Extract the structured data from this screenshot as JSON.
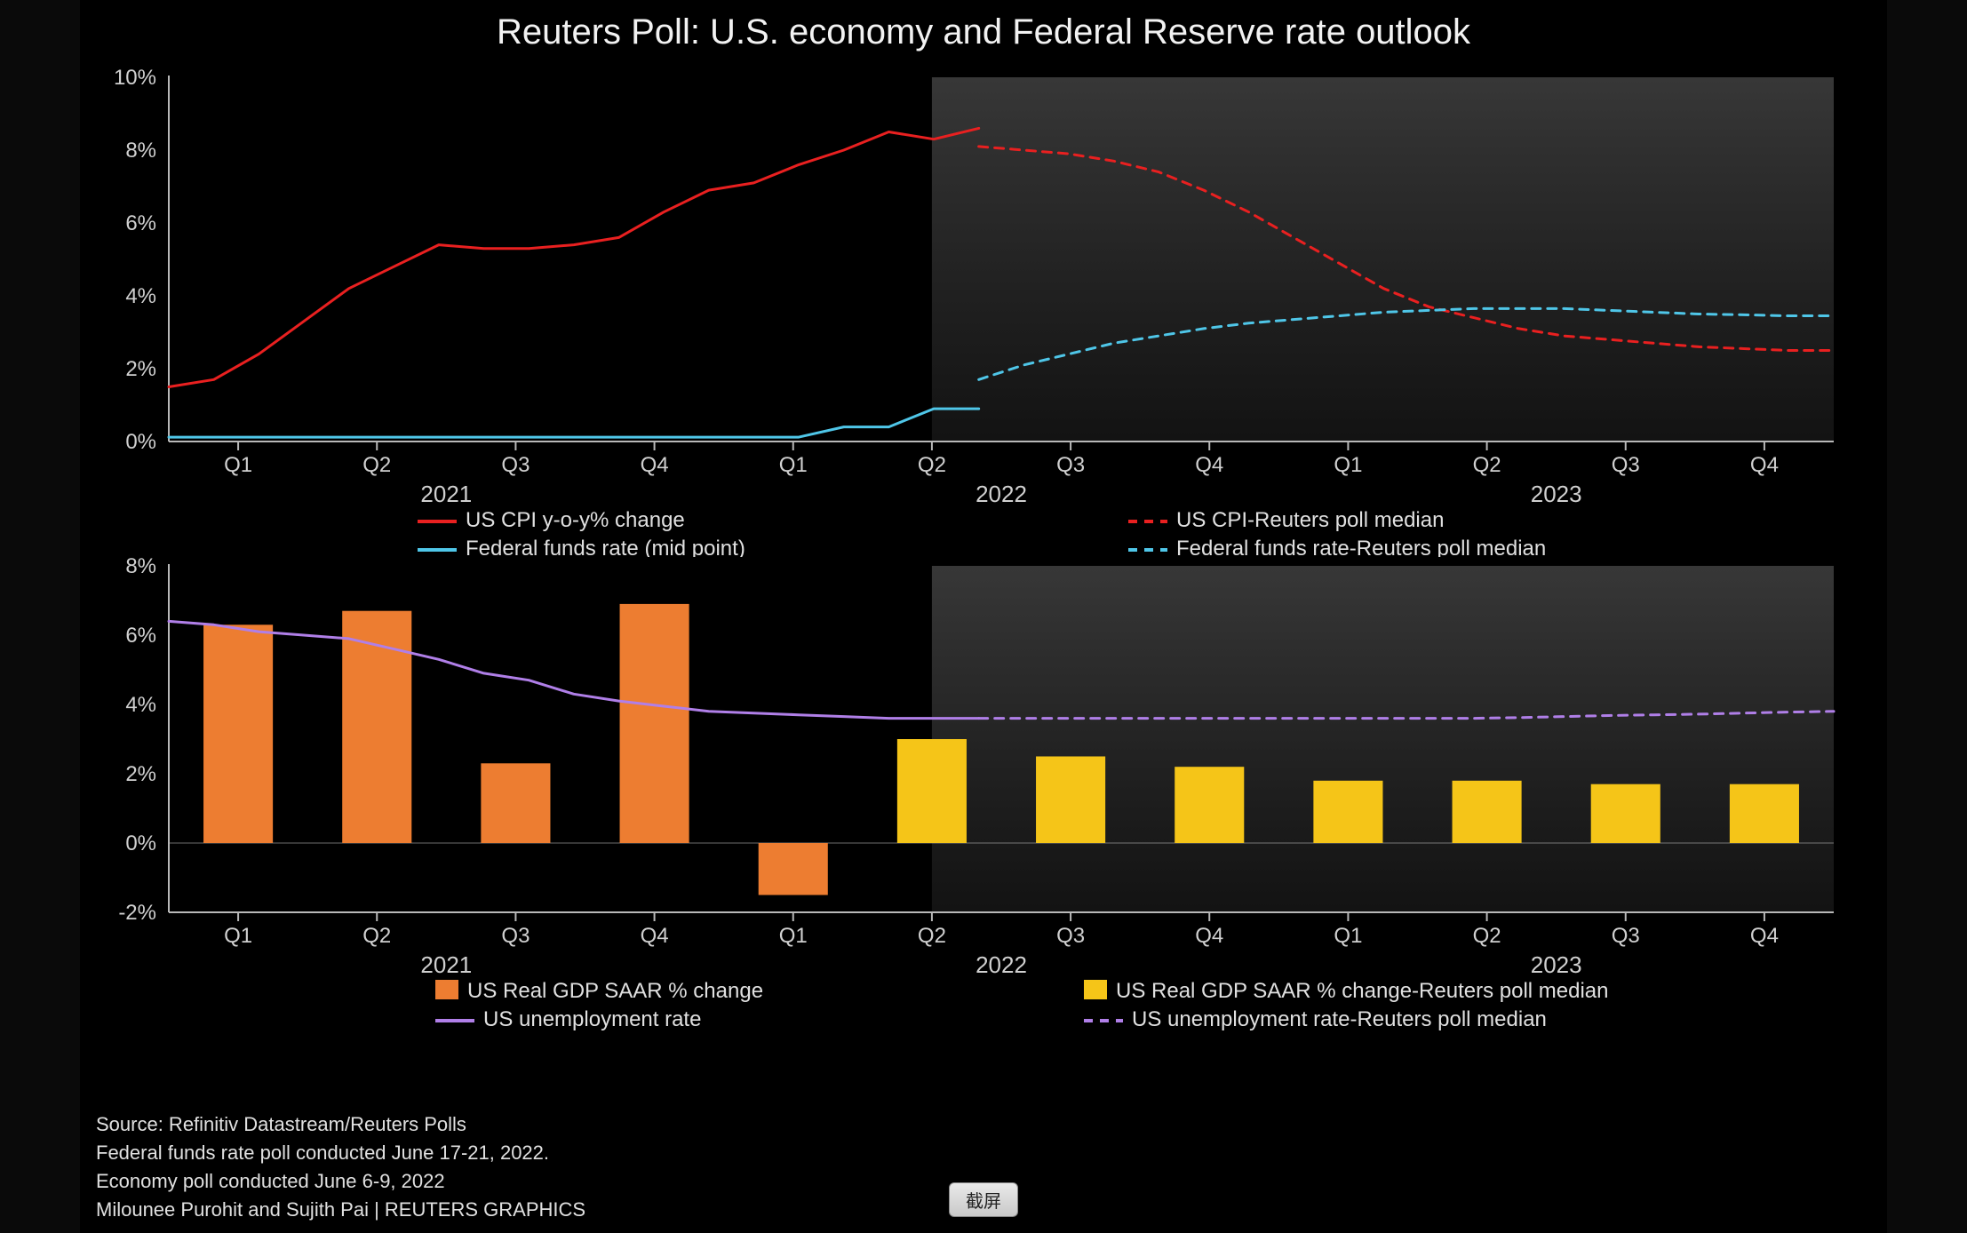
{
  "title": "Reuters Poll: U.S. economy and Federal Reserve rate outlook",
  "colors": {
    "bg_page": "#000000",
    "bg_outer": "#0a0a0a",
    "forecast_shade": "#3a3a3a",
    "axis_line": "#b8b8b8",
    "tick_text": "#d0d0d0",
    "cpi": "#e92020",
    "cpi_forecast": "#e92020",
    "ffr": "#4fc6e8",
    "ffr_forecast": "#4fc6e8",
    "gdp_actual": "#ed7d31",
    "gdp_forecast": "#f5c518",
    "unemp": "#b07fe8",
    "unemp_forecast": "#b07fe8"
  },
  "typography": {
    "title_fontsize": 40,
    "tick_fontsize": 24,
    "legend_fontsize": 24,
    "footer_fontsize": 22
  },
  "shared_x": {
    "quarters": [
      "Q1",
      "Q2",
      "Q3",
      "Q4",
      "Q1",
      "Q2",
      "Q3",
      "Q4",
      "Q1",
      "Q2",
      "Q3",
      "Q4"
    ],
    "years": [
      "2021",
      "2022",
      "2023"
    ],
    "year_positions": [
      2,
      6,
      10
    ],
    "forecast_start_index": 5.5
  },
  "top_chart": {
    "type": "line",
    "ylim": [
      0,
      10
    ],
    "ytick_step": 2,
    "ytick_suffix": "%",
    "line_width": 3,
    "series": [
      {
        "key": "cpi_actual",
        "color": "#e92020",
        "dash": false,
        "data": [
          1.5,
          1.7,
          2.4,
          3.3,
          4.2,
          4.8,
          5.4,
          5.3,
          5.3,
          5.4,
          5.6,
          6.3,
          6.9,
          7.1,
          7.6,
          8.0,
          8.5,
          8.3,
          8.6
        ],
        "x_points": 19
      },
      {
        "key": "cpi_forecast",
        "color": "#e92020",
        "dash": true,
        "data": [
          8.1,
          8.0,
          7.9,
          7.7,
          7.4,
          6.9,
          6.3,
          5.6,
          4.9,
          4.2,
          3.7,
          3.4,
          3.1,
          2.9,
          2.8,
          2.7,
          2.6,
          2.55,
          2.5,
          2.5
        ],
        "x_start": 18,
        "x_points": 20
      },
      {
        "key": "ffr_actual",
        "color": "#4fc6e8",
        "dash": false,
        "data": [
          0.12,
          0.12,
          0.12,
          0.12,
          0.12,
          0.12,
          0.12,
          0.12,
          0.12,
          0.12,
          0.12,
          0.12,
          0.12,
          0.12,
          0.12,
          0.4,
          0.4,
          0.9,
          0.9
        ],
        "x_points": 19
      },
      {
        "key": "ffr_forecast",
        "color": "#4fc6e8",
        "dash": true,
        "data": [
          1.7,
          2.1,
          2.4,
          2.7,
          2.9,
          3.1,
          3.25,
          3.35,
          3.45,
          3.55,
          3.6,
          3.65,
          3.65,
          3.65,
          3.6,
          3.55,
          3.5,
          3.48,
          3.45,
          3.45
        ],
        "x_start": 18,
        "x_points": 20
      }
    ],
    "legend": [
      {
        "swatch": "line",
        "color": "#e92020",
        "dash": false,
        "label": "US CPI y-o-y% change",
        "col": 0,
        "row": 0
      },
      {
        "swatch": "line",
        "color": "#4fc6e8",
        "dash": false,
        "label": "Federal funds rate (mid point)",
        "col": 0,
        "row": 1
      },
      {
        "swatch": "line",
        "color": "#e92020",
        "dash": true,
        "label": "US CPI-Reuters poll median",
        "col": 1,
        "row": 0
      },
      {
        "swatch": "line",
        "color": "#4fc6e8",
        "dash": true,
        "label": "Federal funds rate-Reuters poll median",
        "col": 1,
        "row": 1
      }
    ]
  },
  "bottom_chart": {
    "type": "bar+line",
    "ylim": [
      -2,
      8
    ],
    "ytick_step": 2,
    "ytick_suffix": "%",
    "bar_width": 0.5,
    "line_width": 3,
    "bars": [
      {
        "q": 0,
        "v": 6.3,
        "kind": "actual"
      },
      {
        "q": 1,
        "v": 6.7,
        "kind": "actual"
      },
      {
        "q": 2,
        "v": 2.3,
        "kind": "actual"
      },
      {
        "q": 3,
        "v": 6.9,
        "kind": "actual"
      },
      {
        "q": 4,
        "v": -1.5,
        "kind": "actual"
      },
      {
        "q": 5,
        "v": 3.0,
        "kind": "forecast"
      },
      {
        "q": 6,
        "v": 2.5,
        "kind": "forecast"
      },
      {
        "q": 7,
        "v": 2.2,
        "kind": "forecast"
      },
      {
        "q": 8,
        "v": 1.8,
        "kind": "forecast"
      },
      {
        "q": 9,
        "v": 1.8,
        "kind": "forecast"
      },
      {
        "q": 10,
        "v": 1.7,
        "kind": "forecast"
      },
      {
        "q": 11,
        "v": 1.7,
        "kind": "forecast"
      }
    ],
    "unemp_actual": {
      "color": "#b07fe8",
      "dash": false,
      "data": [
        6.4,
        6.3,
        6.1,
        6.0,
        5.9,
        5.6,
        5.3,
        4.9,
        4.7,
        4.3,
        4.1,
        3.95,
        3.8,
        3.75,
        3.7,
        3.65,
        3.6,
        3.6,
        3.6
      ],
      "x_points": 19
    },
    "unemp_forecast": {
      "color": "#b07fe8",
      "dash": true,
      "data": [
        3.6,
        3.6,
        3.6,
        3.6,
        3.6,
        3.6,
        3.6,
        3.6,
        3.6,
        3.6,
        3.6,
        3.6,
        3.62,
        3.65,
        3.68,
        3.7,
        3.72,
        3.75,
        3.78,
        3.8
      ],
      "x_start": 18,
      "x_points": 20
    },
    "legend": [
      {
        "swatch": "box",
        "color": "#ed7d31",
        "label": "US Real GDP SAAR % change",
        "col": 0,
        "row": 0
      },
      {
        "swatch": "line",
        "color": "#b07fe8",
        "dash": false,
        "label": "US unemployment rate",
        "col": 0,
        "row": 1
      },
      {
        "swatch": "box",
        "color": "#f5c518",
        "label": "US Real GDP SAAR % change-Reuters poll median",
        "col": 1,
        "row": 0
      },
      {
        "swatch": "line",
        "color": "#b07fe8",
        "dash": true,
        "label": "US unemployment rate-Reuters poll median",
        "col": 1,
        "row": 1
      }
    ]
  },
  "footer": {
    "lines": [
      "Source: Refinitiv Datastream/Reuters Polls",
      "Federal funds rate poll conducted June 17-21, 2022.",
      "Economy poll conducted June 6-9, 2022",
      "Milounee Purohit and Sujith Pai | REUTERS GRAPHICS"
    ]
  },
  "screenshot_button": "截屏"
}
